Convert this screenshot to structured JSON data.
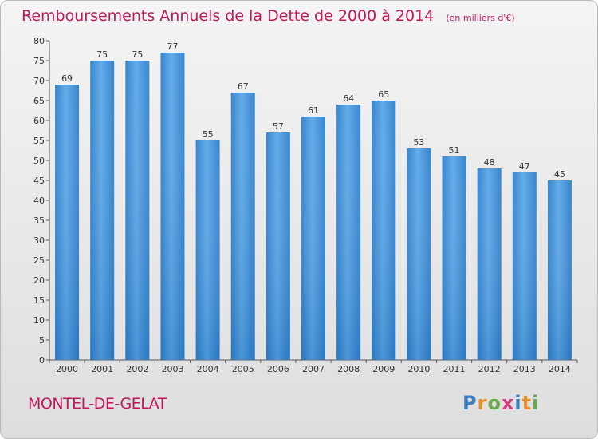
{
  "chart_data": {
    "type": "bar",
    "title": "Remboursements Annuels de la Dette de 2000 à 2014",
    "subtitle": "(en milliers d'€)",
    "categories": [
      "2000",
      "2001",
      "2002",
      "2003",
      "2004",
      "2005",
      "2006",
      "2007",
      "2008",
      "2009",
      "2010",
      "2011",
      "2012",
      "2013",
      "2014"
    ],
    "values": [
      69,
      75,
      75,
      77,
      55,
      67,
      57,
      61,
      64,
      65,
      53,
      51,
      48,
      47,
      45
    ],
    "ylim": [
      0,
      80
    ],
    "yticks": [
      0,
      5,
      10,
      15,
      20,
      25,
      30,
      35,
      40,
      45,
      50,
      55,
      60,
      65,
      70,
      75,
      80
    ],
    "xlabel": "",
    "ylabel": "",
    "grid": false,
    "bar_color": "#3b8fd8"
  },
  "footer": {
    "place_name": "MONTEL-DE-GELAT",
    "logo_letters": [
      "P",
      "r",
      "o",
      "x",
      "i",
      "t",
      "i"
    ],
    "logo_colors": [
      "#3c7fc1",
      "#e8902a",
      "#6aa84f",
      "#d63c7d",
      "#3c7fc1",
      "#e8902a",
      "#6aa84f"
    ]
  }
}
